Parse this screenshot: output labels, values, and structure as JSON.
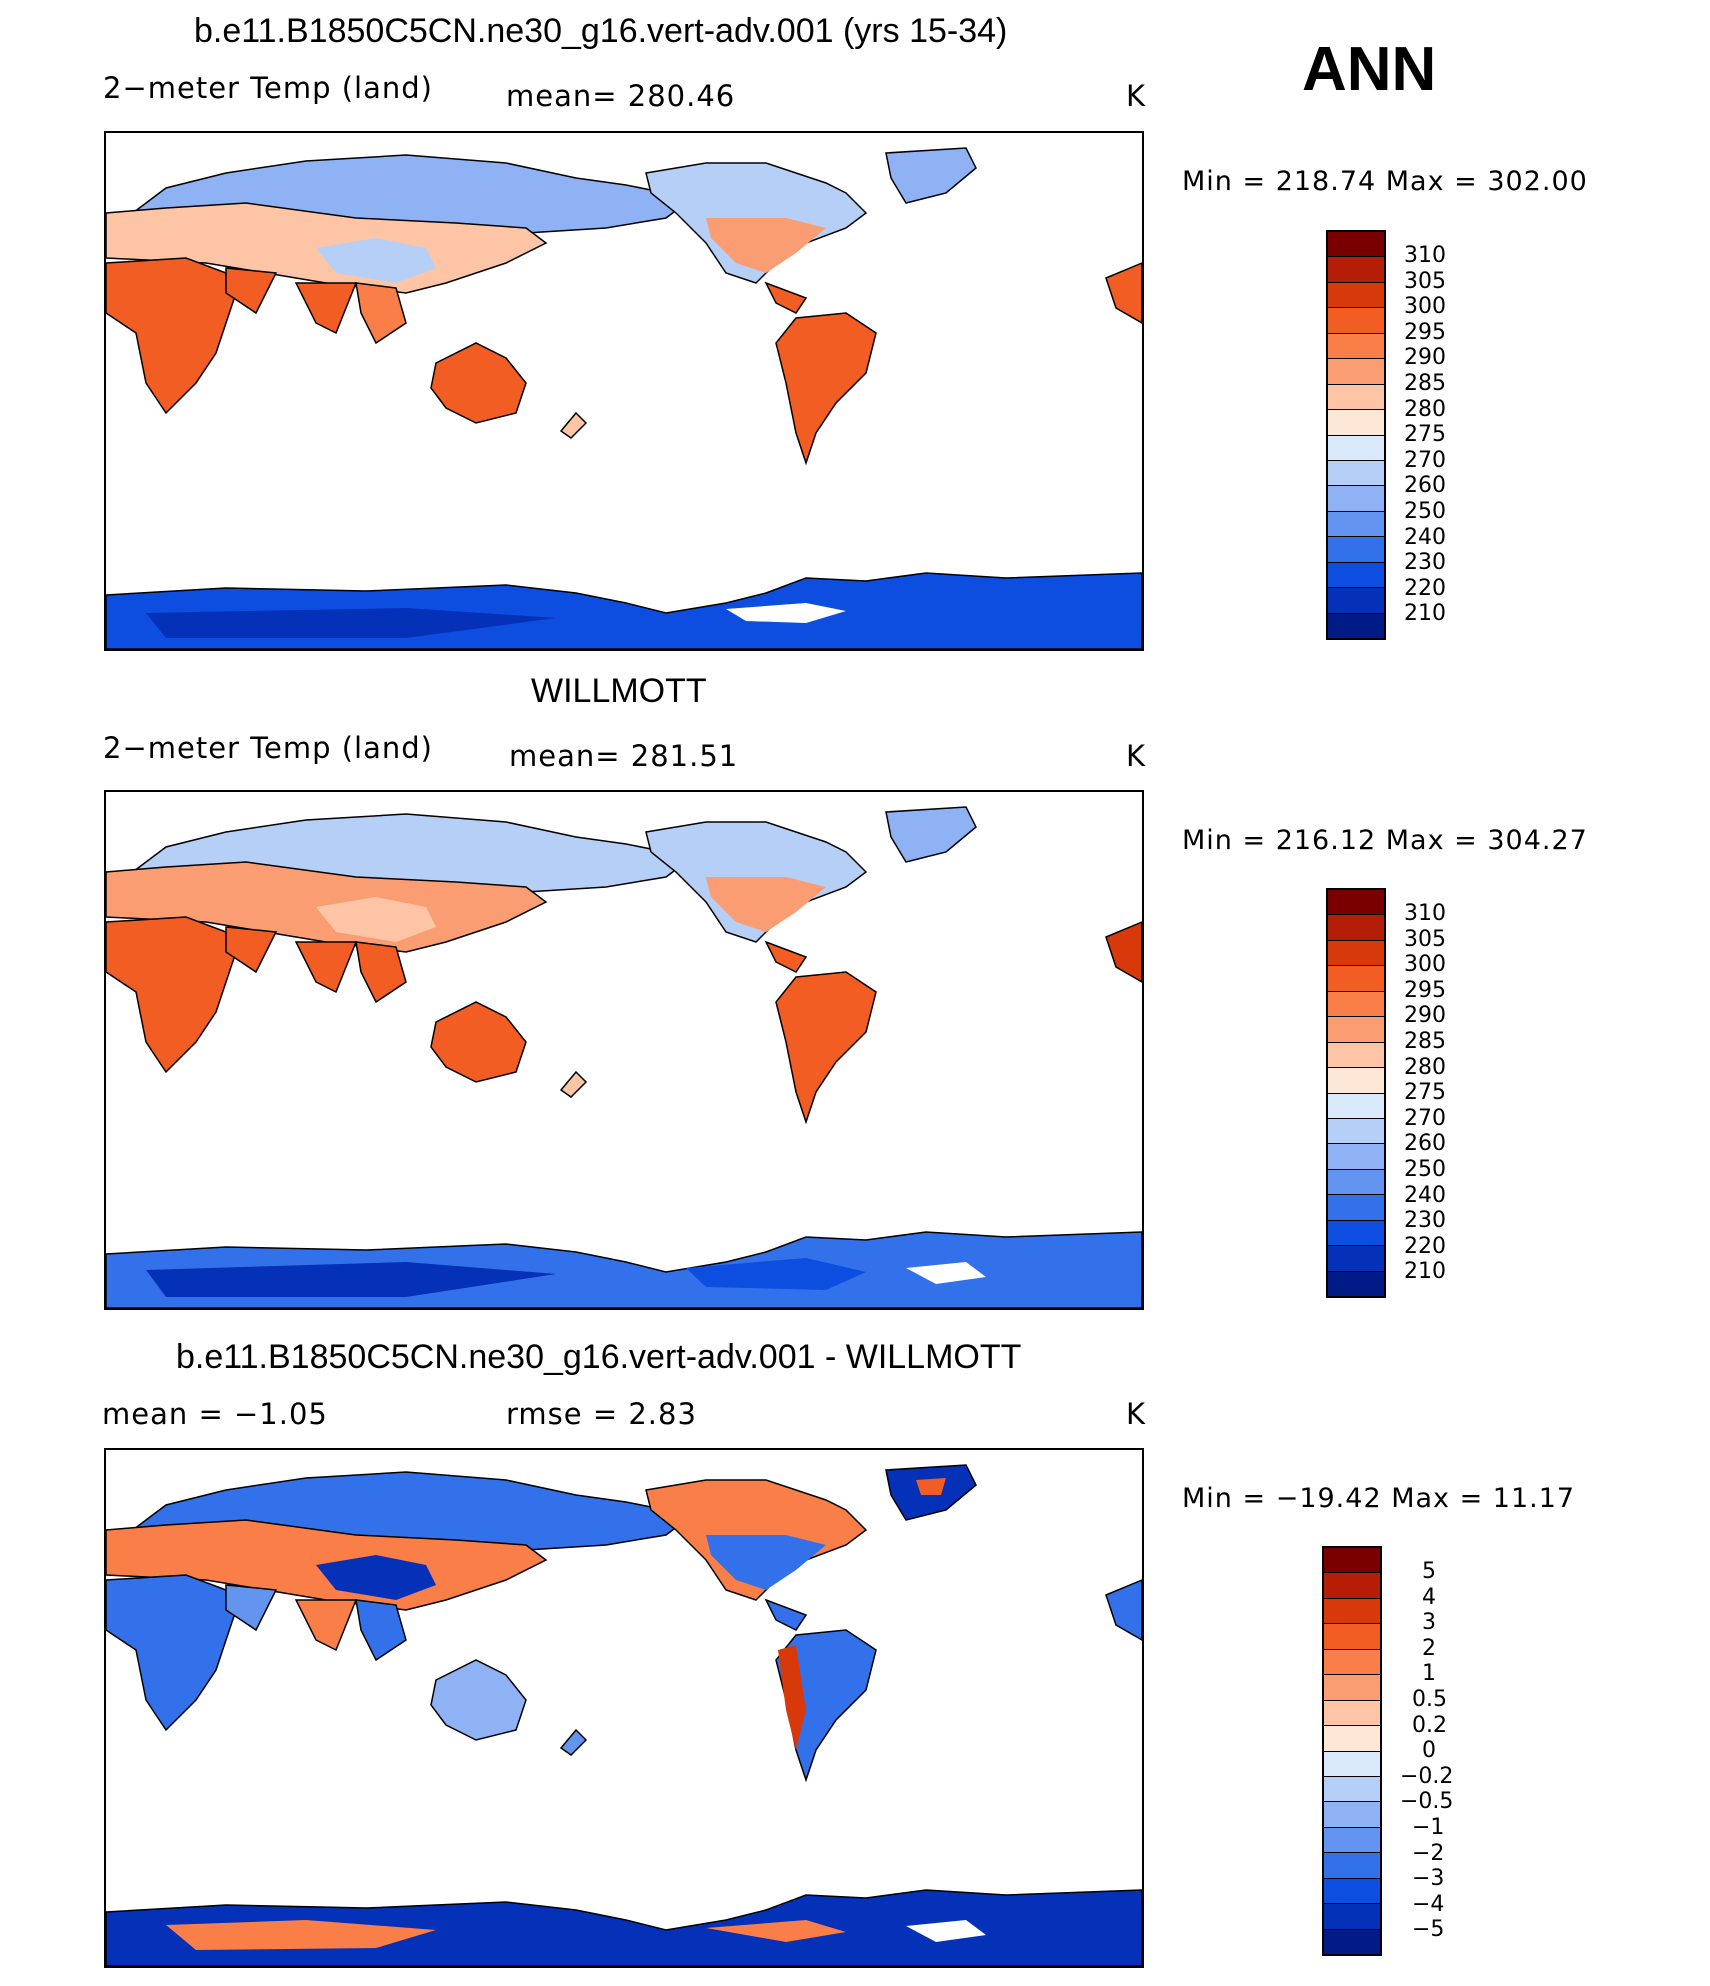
{
  "season": "ANN",
  "panels": [
    {
      "title": "b.e11.B1850C5CN.ne30_g16.vert-adv.001 (yrs 15-34)",
      "left_label": "2−meter Temp (land)",
      "center_label": "mean=  280.46",
      "units": "K",
      "minmax": "Min  =  218.74  Max  =  302.00",
      "colorbar_labels": [
        "310",
        "305",
        "300",
        "295",
        "290",
        "285",
        "280",
        "275",
        "270",
        "260",
        "250",
        "240",
        "230",
        "220",
        "210"
      ]
    },
    {
      "title": "WILLMOTT",
      "left_label": "2−meter Temp (land)",
      "center_label": "mean=  281.51",
      "units": "K",
      "minmax": "Min  =  216.12  Max  =  304.27",
      "colorbar_labels": [
        "310",
        "305",
        "300",
        "295",
        "290",
        "285",
        "280",
        "275",
        "270",
        "260",
        "250",
        "240",
        "230",
        "220",
        "210"
      ]
    },
    {
      "title": "b.e11.B1850C5CN.ne30_g16.vert-adv.001 - WILLMOTT",
      "left_label": "mean  =    −1.05",
      "center_label": "rmse  =     2.83",
      "units": "K",
      "minmax": "Min  =  −19.42  Max  =    11.17",
      "colorbar_labels": [
        "5",
        "4",
        "3",
        "2",
        "1",
        "0.5",
        "0.2",
        "0",
        "−0.2",
        "−0.5",
        "−1",
        "−2",
        "−3",
        "−4",
        "−5"
      ]
    }
  ],
  "colors": {
    "temp_scale": [
      "#7a0000",
      "#b51e06",
      "#d8390a",
      "#f15d22",
      "#f97e48",
      "#fb9d72",
      "#fdc5a6",
      "#fde8d8",
      "#d9e8fb",
      "#b6cff7",
      "#8fb2f4",
      "#6294f0",
      "#3371ea",
      "#0d4ddf",
      "#0530b8",
      "#001b86"
    ],
    "diff_scale": [
      "#7a0000",
      "#b51e06",
      "#d8390a",
      "#f15d22",
      "#f97e48",
      "#fb9d72",
      "#fdc5a6",
      "#fde8d8",
      "#d9e8fb",
      "#b6cff7",
      "#8fb2f4",
      "#6294f0",
      "#3371ea",
      "#0d4ddf",
      "#0530b8",
      "#001b86"
    ]
  }
}
